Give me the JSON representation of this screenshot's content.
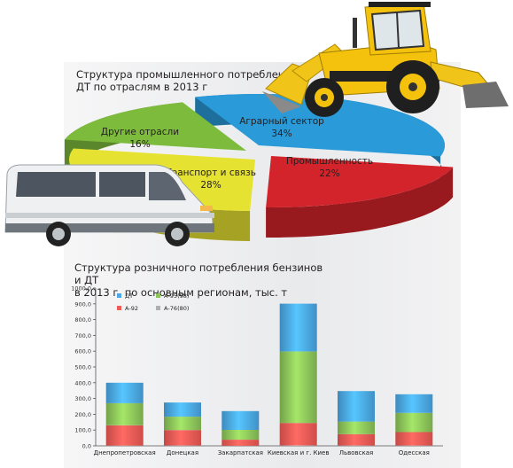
{
  "chart_data": [
    {
      "type": "pie",
      "title": "Структура промышленного потребления\nДТ по отраслям в 2013 г",
      "slices": [
        {
          "name": "Аграрный сектор",
          "value": 34,
          "label": "34%",
          "color": "#2a9ad8"
        },
        {
          "name": "Промышленность",
          "value": 22,
          "label": "22%",
          "color": "#d3242b"
        },
        {
          "name": "Транспорт и связь",
          "value": 28,
          "label": "28%",
          "color": "#e6e232"
        },
        {
          "name": "Другие отрасли",
          "value": 16,
          "label": "16%",
          "color": "#7dbb3c"
        }
      ]
    },
    {
      "type": "bar",
      "stacked": true,
      "title": "Структура розничного потребления бензинов и ДТ\nв 2013 г, по основным регионам, тыс. т",
      "categories": [
        "Днепропетровская",
        "Донецкая",
        "Закарпатская",
        "Киевская и г. Киев",
        "Львовская",
        "Одесская"
      ],
      "series": [
        {
          "name": "А-76(80)",
          "color": "#b0b0b0",
          "values": [
            2,
            2,
            1,
            3,
            2,
            2
          ]
        },
        {
          "name": "А-92",
          "color": "#ef5a55",
          "values": [
            128,
            98,
            38,
            142,
            72,
            85
          ]
        },
        {
          "name": "А-95(98)",
          "color": "#8cc459",
          "values": [
            140,
            85,
            62,
            453,
            80,
            122
          ]
        },
        {
          "name": "ДТ",
          "color": "#4aa8e6",
          "values": [
            130,
            90,
            119,
            303,
            193,
            118
          ]
        }
      ],
      "ylim": [
        0,
        1000
      ],
      "yticks": [
        "0,0",
        "100,0",
        "200,0",
        "300,0",
        "400,0",
        "500,0",
        "600,0",
        "700,0",
        "800,0",
        "900,0",
        "1000,0"
      ],
      "legend_placement": "top-left",
      "legend_order": [
        "ДТ",
        "А-95(98)",
        "А-92",
        "А-76(80)"
      ]
    }
  ],
  "icons": [
    "bulldozer-icon",
    "minibus-icon"
  ]
}
